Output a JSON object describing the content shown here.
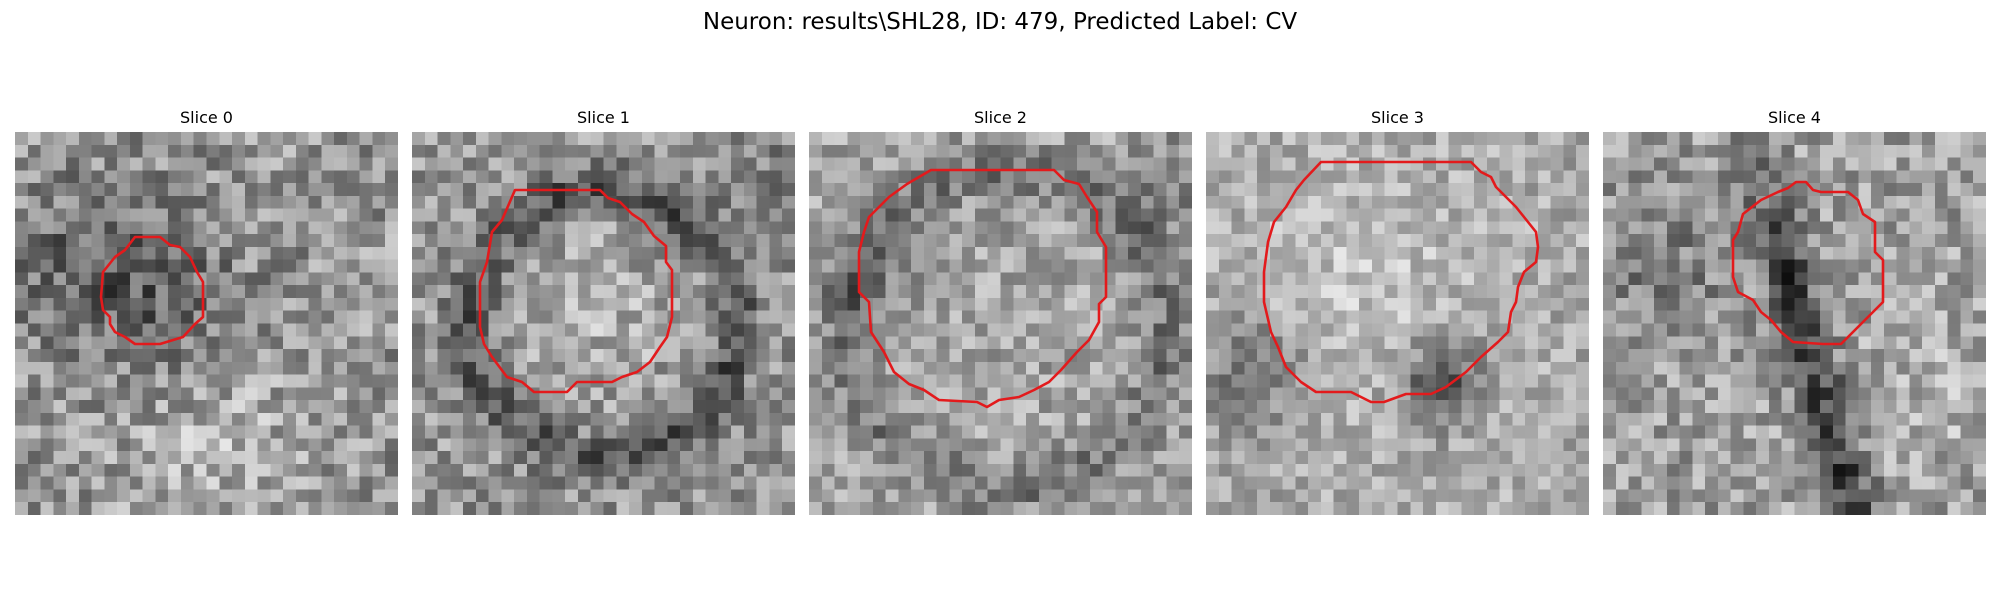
{
  "figure": {
    "title": "Neuron: results\\SHL28, ID: 479, Predicted Label: CV"
  },
  "slices": [
    {
      "title": "Slice 0"
    },
    {
      "title": "Slice 1"
    },
    {
      "title": "Slice 2"
    },
    {
      "title": "Slice 3"
    },
    {
      "title": "Slice 4"
    }
  ],
  "colors": {
    "contour": "#e31a1c",
    "background": "#ffffff"
  },
  "colormap": "gray"
}
